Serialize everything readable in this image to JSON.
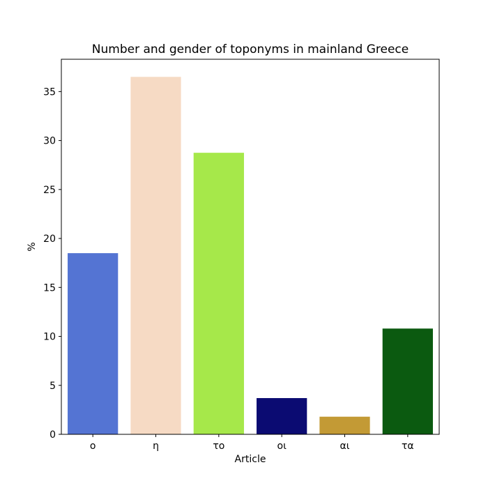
{
  "chart_data": {
    "type": "bar",
    "title": "Number and gender of toponyms in mainland Greece",
    "xlabel": "Article",
    "ylabel": "%",
    "categories": [
      "ο",
      "η",
      "το",
      "οι",
      "αι",
      "τα"
    ],
    "values": [
      18.5,
      36.5,
      28.75,
      3.7,
      1.8,
      10.8
    ],
    "colors": [
      "#5474d3",
      "#f6dac4",
      "#a6e84a",
      "#0b0b72",
      "#c39a35",
      "#0b5a10"
    ],
    "ylim": [
      0,
      38.3
    ],
    "yticks": [
      0,
      5,
      10,
      15,
      20,
      25,
      30,
      35
    ],
    "grid": false,
    "legend": "none"
  }
}
